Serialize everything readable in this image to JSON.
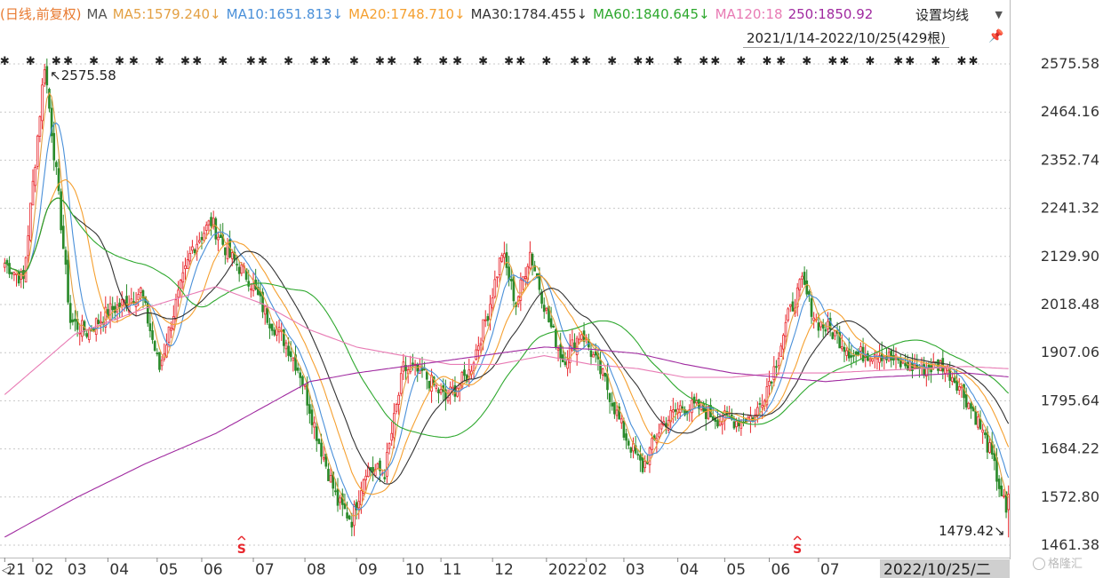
{
  "header": {
    "mode_label": "(日线,前复权)",
    "ma_label": "MA",
    "ma_items": [
      {
        "key": "MA5",
        "text": "MA5:1579.240↓",
        "color": "#e3a043"
      },
      {
        "key": "MA10",
        "text": "MA10:1651.813↓",
        "color": "#4a90d9"
      },
      {
        "key": "MA20",
        "text": "MA20:1748.710↓",
        "color": "#f5a030"
      },
      {
        "key": "MA30",
        "text": "MA30:1784.455↓",
        "color": "#333333"
      },
      {
        "key": "MA60",
        "text": "MA60:1840.645↓",
        "color": "#2ea82e"
      },
      {
        "key": "MA120",
        "text": "MA120:18",
        "color": "#e87bb4"
      },
      {
        "key": "MA250",
        "text": "250:1850.92",
        "color": "#a02aa0"
      }
    ],
    "settings_label": "设置均线",
    "range_label": "2021/1/14-2022/10/25(429根)",
    "watermark": "格隆汇"
  },
  "colors": {
    "up": "#e8272d",
    "down": "#2a8a2a",
    "grid": "#c8c8c8",
    "mode_label": "#e87a30"
  },
  "chart_data": {
    "type": "candlestick",
    "y_ticks": [
      "2575.58",
      "2464.16",
      "2352.74",
      "2241.32",
      "2129.90",
      "2018.48",
      "1907.06",
      "1795.64",
      "1684.22",
      "1572.80",
      "1461.38"
    ],
    "ylim": [
      1461.38,
      2575.58
    ],
    "x_tick_labels": [
      {
        "label": "21",
        "index": 0
      },
      {
        "label": "02",
        "index": 12
      },
      {
        "label": "03",
        "index": 26
      },
      {
        "label": "04",
        "index": 44
      },
      {
        "label": "05",
        "index": 65
      },
      {
        "label": "06",
        "index": 84
      },
      {
        "label": "07",
        "index": 106
      },
      {
        "label": "08",
        "index": 128
      },
      {
        "label": "09",
        "index": 150
      },
      {
        "label": "10",
        "index": 170
      },
      {
        "label": "11",
        "index": 186
      },
      {
        "label": "12",
        "index": 208
      },
      {
        "label": "2022",
        "index": 231
      },
      {
        "label": "02",
        "index": 248
      },
      {
        "label": "03",
        "index": 264
      },
      {
        "label": "04",
        "index": 287
      },
      {
        "label": "05",
        "index": 307
      },
      {
        "label": "06",
        "index": 326
      },
      {
        "label": "07",
        "index": 347
      }
    ],
    "current_date_label": "2022/10/25/二",
    "nav_arrow": "◁",
    "annotations": [
      {
        "text": "↖2575.58",
        "value": 2575.58,
        "index": 17
      },
      {
        "text": "1479.42↘",
        "value": 1479.42,
        "index": 428
      }
    ],
    "s_markers": [
      {
        "label": "S",
        "index": 101
      },
      {
        "label": "S",
        "index": 338
      }
    ],
    "bar_count": 429,
    "price_anchors": [
      [
        0,
        2115
      ],
      [
        8,
        2075
      ],
      [
        17,
        2575.58
      ],
      [
        22,
        2320
      ],
      [
        28,
        1980
      ],
      [
        35,
        1955
      ],
      [
        45,
        2005
      ],
      [
        52,
        2025
      ],
      [
        58,
        2050
      ],
      [
        66,
        1870
      ],
      [
        72,
        2000
      ],
      [
        80,
        2150
      ],
      [
        88,
        2210
      ],
      [
        96,
        2130
      ],
      [
        104,
        2080
      ],
      [
        112,
        1990
      ],
      [
        120,
        1930
      ],
      [
        126,
        1860
      ],
      [
        134,
        1700
      ],
      [
        142,
        1560
      ],
      [
        148,
        1520
      ],
      [
        154,
        1640
      ],
      [
        162,
        1630
      ],
      [
        170,
        1870
      ],
      [
        178,
        1860
      ],
      [
        188,
        1800
      ],
      [
        198,
        1860
      ],
      [
        206,
        2000
      ],
      [
        212,
        2140
      ],
      [
        218,
        2020
      ],
      [
        224,
        2140
      ],
      [
        232,
        1980
      ],
      [
        238,
        1890
      ],
      [
        246,
        1955
      ],
      [
        256,
        1840
      ],
      [
        264,
        1720
      ],
      [
        272,
        1640
      ],
      [
        280,
        1740
      ],
      [
        288,
        1780
      ],
      [
        296,
        1780
      ],
      [
        304,
        1755
      ],
      [
        312,
        1750
      ],
      [
        320,
        1760
      ],
      [
        328,
        1870
      ],
      [
        334,
        1990
      ],
      [
        340,
        2070
      ],
      [
        346,
        1980
      ],
      [
        354,
        1950
      ],
      [
        362,
        1900
      ],
      [
        372,
        1910
      ],
      [
        382,
        1880
      ],
      [
        392,
        1870
      ],
      [
        400,
        1880
      ],
      [
        406,
        1840
      ],
      [
        414,
        1760
      ],
      [
        420,
        1680
      ],
      [
        426,
        1560
      ],
      [
        428,
        1500
      ]
    ],
    "ma_curves": {
      "MA120": [
        [
          0,
          1810
        ],
        [
          30,
          1950
        ],
        [
          60,
          2010
        ],
        [
          90,
          2060
        ],
        [
          110,
          2020
        ],
        [
          130,
          1960
        ],
        [
          150,
          1920
        ],
        [
          170,
          1900
        ],
        [
          190,
          1880
        ],
        [
          210,
          1880
        ],
        [
          230,
          1900
        ],
        [
          250,
          1880
        ],
        [
          270,
          1870
        ],
        [
          290,
          1850
        ],
        [
          310,
          1850
        ],
        [
          330,
          1860
        ],
        [
          350,
          1860
        ],
        [
          370,
          1865
        ],
        [
          390,
          1870
        ],
        [
          410,
          1875
        ],
        [
          428,
          1870
        ]
      ],
      "MA250": [
        [
          0,
          1480
        ],
        [
          30,
          1570
        ],
        [
          60,
          1650
        ],
        [
          90,
          1720
        ],
        [
          110,
          1780
        ],
        [
          130,
          1840
        ],
        [
          150,
          1860
        ],
        [
          170,
          1875
        ],
        [
          190,
          1890
        ],
        [
          210,
          1905
        ],
        [
          230,
          1920
        ],
        [
          250,
          1915
        ],
        [
          270,
          1905
        ],
        [
          290,
          1880
        ],
        [
          310,
          1860
        ],
        [
          330,
          1850
        ],
        [
          350,
          1840
        ],
        [
          370,
          1850
        ],
        [
          390,
          1855
        ],
        [
          410,
          1860
        ],
        [
          428,
          1851
        ]
      ]
    },
    "signal_count": 46
  }
}
